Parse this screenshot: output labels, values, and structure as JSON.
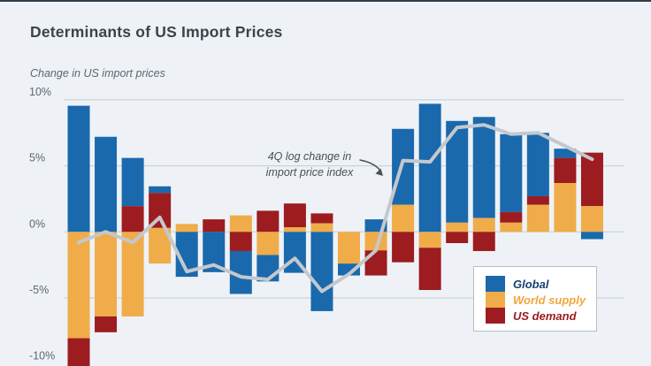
{
  "page": {
    "background": "#eef2f7",
    "top_bar_color": "#2e3d4a"
  },
  "header": {
    "title": "Determinants of US Import Prices"
  },
  "chart_data": {
    "type": "stacked-bar+line",
    "title": "Determinants of US Import Prices",
    "subtitle": "Change in US import prices",
    "grid": true,
    "legend_position": "bottom-right",
    "y_axis": {
      "unit": "%",
      "range": [
        -10.3,
        10
      ],
      "ticks": [
        {
          "label": "10%",
          "value": 10,
          "gridline": true
        },
        {
          "label": "5%",
          "value": 5,
          "gridline": true
        },
        {
          "label": "0%",
          "value": 0,
          "gridline": true
        },
        {
          "label": "-5%",
          "value": -5,
          "gridline": true
        },
        {
          "label": "-10%",
          "value": -10,
          "gridline": false
        }
      ]
    },
    "colors": {
      "global": "#1a69ad",
      "world_supply": "#efac49",
      "us_demand": "#9c1c20",
      "line": "#c4c8cd",
      "gridline": "#c7ccd2",
      "tick_text": "#5d656e"
    },
    "legend": [
      {
        "label": "Global",
        "series": "global",
        "swatch": "#1a69ad",
        "text_color": "#17406f"
      },
      {
        "label": "World supply",
        "series": "world_supply",
        "swatch": "#efac49",
        "text_color": "#f4a53a"
      },
      {
        "label": "US demand",
        "series": "us_demand",
        "swatch": "#9c1c20",
        "text_color": "#9c1c20"
      }
    ],
    "annotation": {
      "line1": "4Q log change in",
      "line2": "import price index"
    },
    "line_series": {
      "name": "4Q log change in import price index",
      "values": [
        -0.8,
        0.0,
        -0.8,
        1.1,
        -3.0,
        -2.5,
        -3.4,
        -3.6,
        -2.0,
        -4.5,
        -3.2,
        -1.4,
        5.4,
        5.3,
        7.9,
        8.1,
        7.4,
        7.5,
        6.5,
        5.5
      ]
    },
    "bars": [
      {
        "segments": [
          {
            "series": "global",
            "from": 9.55,
            "to": 0
          },
          {
            "series": "world_supply",
            "from": 0,
            "to": -8.05
          },
          {
            "series": "us_demand",
            "from": -8.05,
            "to": -10.6
          }
        ]
      },
      {
        "segments": [
          {
            "series": "global",
            "from": 7.2,
            "to": 0
          },
          {
            "series": "world_supply",
            "from": 0,
            "to": -6.4
          },
          {
            "series": "us_demand",
            "from": -6.4,
            "to": -7.6
          }
        ]
      },
      {
        "segments": [
          {
            "series": "global",
            "from": 5.6,
            "to": 1.95
          },
          {
            "series": "us_demand",
            "from": 1.95,
            "to": 0
          },
          {
            "series": "world_supply",
            "from": 0,
            "to": -6.4
          }
        ]
      },
      {
        "segments": [
          {
            "series": "global",
            "from": 3.45,
            "to": 2.95
          },
          {
            "series": "us_demand",
            "from": 2.95,
            "to": 0.3
          },
          {
            "series": "world_supply",
            "from": 0.3,
            "to": -2.4
          }
        ]
      },
      {
        "segments": [
          {
            "series": "world_supply",
            "from": 0.6,
            "to": 0
          },
          {
            "series": "global",
            "from": 0,
            "to": -3.4
          }
        ]
      },
      {
        "segments": [
          {
            "series": "us_demand",
            "from": 0.95,
            "to": 0
          },
          {
            "series": "global",
            "from": 0,
            "to": -3.05
          }
        ]
      },
      {
        "segments": [
          {
            "series": "world_supply",
            "from": 1.25,
            "to": 0
          },
          {
            "series": "us_demand",
            "from": 0,
            "to": -1.45
          },
          {
            "series": "global",
            "from": -1.45,
            "to": -4.7
          }
        ]
      },
      {
        "segments": [
          {
            "series": "us_demand",
            "from": 1.6,
            "to": 0
          },
          {
            "series": "world_supply",
            "from": 0,
            "to": -1.75
          },
          {
            "series": "global",
            "from": -1.75,
            "to": -3.75
          }
        ]
      },
      {
        "segments": [
          {
            "series": "us_demand",
            "from": 2.15,
            "to": 0.35
          },
          {
            "series": "world_supply",
            "from": 0.35,
            "to": 0
          },
          {
            "series": "global",
            "from": 0,
            "to": -3.1
          }
        ]
      },
      {
        "segments": [
          {
            "series": "us_demand",
            "from": 1.4,
            "to": 0.65
          },
          {
            "series": "world_supply",
            "from": 0.65,
            "to": 0
          },
          {
            "series": "global",
            "from": 0,
            "to": -6.0
          }
        ]
      },
      {
        "segments": [
          {
            "series": "world_supply",
            "from": 0,
            "to": -2.4
          },
          {
            "series": "global",
            "from": -2.4,
            "to": -3.3
          }
        ]
      },
      {
        "segments": [
          {
            "series": "global",
            "from": 0.95,
            "to": 0
          },
          {
            "series": "world_supply",
            "from": 0,
            "to": -1.4
          },
          {
            "series": "us_demand",
            "from": -1.4,
            "to": -3.3
          }
        ]
      },
      {
        "segments": [
          {
            "series": "global",
            "from": 7.8,
            "to": 2.05
          },
          {
            "series": "world_supply",
            "from": 2.05,
            "to": 0
          },
          {
            "series": "us_demand",
            "from": 0,
            "to": -2.3
          }
        ]
      },
      {
        "segments": [
          {
            "series": "global",
            "from": 9.7,
            "to": 0
          },
          {
            "series": "world_supply",
            "from": 0,
            "to": -1.2
          },
          {
            "series": "us_demand",
            "from": -1.2,
            "to": -4.4
          }
        ]
      },
      {
        "segments": [
          {
            "series": "global",
            "from": 8.4,
            "to": 0.7
          },
          {
            "series": "world_supply",
            "from": 0.7,
            "to": 0
          },
          {
            "series": "us_demand",
            "from": 0,
            "to": -0.85
          }
        ]
      },
      {
        "segments": [
          {
            "series": "global",
            "from": 8.7,
            "to": 1.05
          },
          {
            "series": "world_supply",
            "from": 1.05,
            "to": 0
          },
          {
            "series": "us_demand",
            "from": 0,
            "to": -1.45
          }
        ]
      },
      {
        "segments": [
          {
            "series": "global",
            "from": 7.4,
            "to": 1.5
          },
          {
            "series": "us_demand",
            "from": 1.5,
            "to": 0.7
          },
          {
            "series": "world_supply",
            "from": 0.7,
            "to": 0
          }
        ]
      },
      {
        "segments": [
          {
            "series": "global",
            "from": 7.5,
            "to": 2.7
          },
          {
            "series": "us_demand",
            "from": 2.7,
            "to": 2.05
          },
          {
            "series": "world_supply",
            "from": 2.05,
            "to": 0
          }
        ]
      },
      {
        "segments": [
          {
            "series": "global",
            "from": 6.3,
            "to": 5.6
          },
          {
            "series": "us_demand",
            "from": 5.6,
            "to": 3.7
          },
          {
            "series": "world_supply",
            "from": 3.7,
            "to": 0
          }
        ]
      },
      {
        "segments": [
          {
            "series": "us_demand",
            "from": 6.0,
            "to": 1.95
          },
          {
            "series": "world_supply",
            "from": 1.95,
            "to": 0
          },
          {
            "series": "global",
            "from": 0,
            "to": -0.55
          }
        ]
      }
    ]
  }
}
